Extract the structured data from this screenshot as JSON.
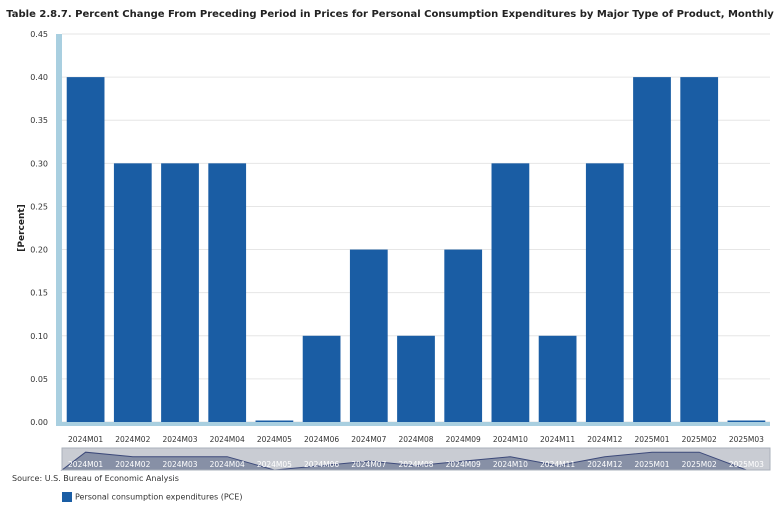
{
  "chart_data": {
    "type": "bar",
    "title": "Table 2.8.7. Percent Change From Preceding Period in Prices for Personal Consumption Expenditures by Major Type of Product, Monthly",
    "xlabel": "",
    "ylabel": "[Percent]",
    "ylim": [
      0,
      0.45
    ],
    "yticks": [
      "0.00",
      "0.05",
      "0.10",
      "0.15",
      "0.20",
      "0.25",
      "0.30",
      "0.35",
      "0.40",
      "0.45"
    ],
    "grid": true,
    "legend_position": "bottom-left",
    "categories": [
      "2024M01",
      "2024M02",
      "2024M03",
      "2024M04",
      "2024M05",
      "2024M06",
      "2024M07",
      "2024M08",
      "2024M09",
      "2024M10",
      "2024M11",
      "2024M12",
      "2025M01",
      "2025M02",
      "2025M03"
    ],
    "series": [
      {
        "name": "Personal consumption expenditures (PCE)",
        "color": "#1a5da4",
        "values": [
          0.4,
          0.3,
          0.3,
          0.3,
          0.0,
          0.1,
          0.2,
          0.1,
          0.2,
          0.3,
          0.1,
          0.3,
          0.4,
          0.4,
          0.0
        ]
      }
    ]
  },
  "footer": {
    "source": "Source: U.S. Bureau of Economic Analysis"
  },
  "legend": {
    "label": "Personal consumption expenditures (PCE)"
  }
}
